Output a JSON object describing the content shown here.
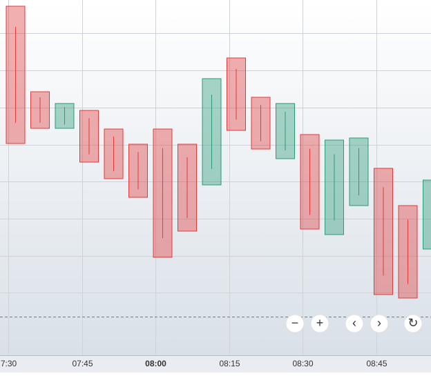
{
  "chart_data": {
    "type": "box-candles",
    "categories": [
      "7:30",
      null,
      null,
      "07:45",
      null,
      null,
      "08:00",
      null,
      null,
      "08:15",
      null,
      null,
      "08:30",
      null,
      null,
      "08:45",
      null,
      null
    ],
    "bold_ticks": [
      6
    ],
    "open": [
      506,
      382,
      329,
      355,
      328,
      306,
      328,
      306,
      247,
      431,
      374,
      285,
      320,
      175,
      217,
      271,
      217,
      154
    ],
    "close": [
      307,
      329,
      365,
      280,
      256,
      229,
      142,
      180,
      401,
      326,
      299,
      365,
      183,
      312,
      315,
      88,
      83,
      254
    ],
    "up_color": "#2a9a78",
    "down_color": "#e03a3a",
    "ylim": [
      0,
      515
    ],
    "ygrid": [
      467,
      413,
      359,
      305,
      252,
      198,
      144,
      91
    ],
    "reference_line": 56,
    "grid": true,
    "controls": [
      "−",
      "+",
      "‹",
      "›",
      "↻"
    ]
  }
}
